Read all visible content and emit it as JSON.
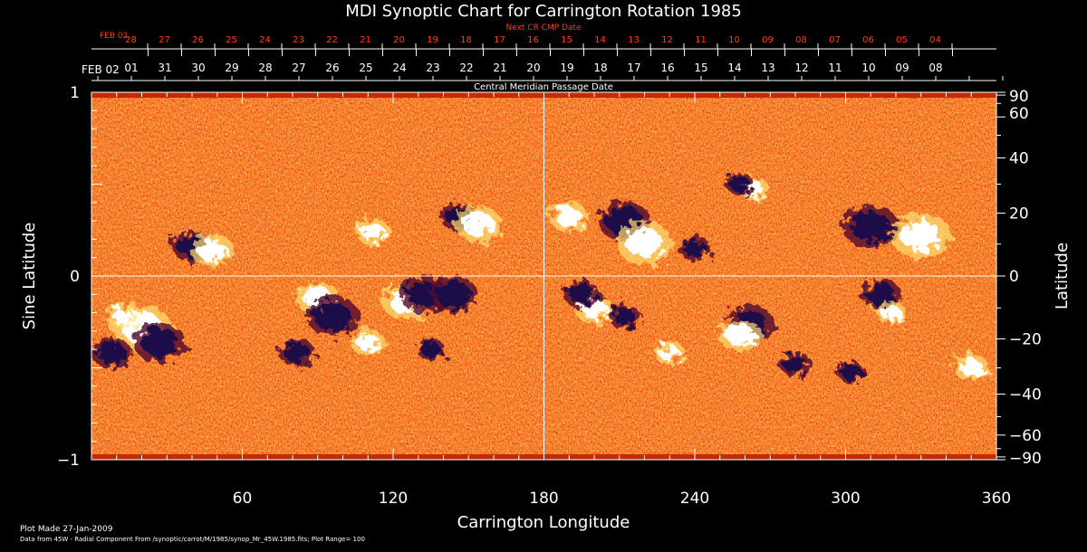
{
  "chart_data": {
    "type": "heatmap",
    "title": "MDI Synoptic Chart for Carrington Rotation 1985",
    "xlabel": "Carrington Longitude",
    "ylabel_left": "Sine Latitude",
    "ylabel_right": "Latitude",
    "xlim": [
      0,
      360
    ],
    "ylim": [
      -1,
      1
    ],
    "x_ticks": [
      60,
      120,
      180,
      240,
      300,
      360
    ],
    "y_ticks_left": [
      "1",
      "0",
      "−1"
    ],
    "y_ticks_right": [
      90,
      60,
      40,
      20,
      0,
      -20,
      -40,
      -60,
      -90
    ],
    "y_ticks_right_labels": [
      "90",
      "60",
      "40",
      "20",
      "0",
      "−20",
      "−40",
      "−60",
      "−90"
    ],
    "center_crosshair": {
      "longitude": 180,
      "sine_latitude": 0
    },
    "plot_range": 100,
    "colormap_colors": [
      "#1a0a4a",
      "#5a1030",
      "#c02000",
      "#ff5a10",
      "#ff9a30",
      "#ffe070",
      "#ffffff"
    ],
    "magnetic_regions": [
      {
        "lon": 40,
        "sinlat": 0.16,
        "polarity": "negative",
        "size": 1.0
      },
      {
        "lon": 48,
        "sinlat": 0.14,
        "polarity": "positive",
        "size": 1.0
      },
      {
        "lon": 20,
        "sinlat": -0.28,
        "polarity": "positive",
        "size": 1.4
      },
      {
        "lon": 27,
        "sinlat": -0.36,
        "polarity": "negative",
        "size": 1.3
      },
      {
        "lon": 12,
        "sinlat": -0.22,
        "polarity": "positive",
        "size": 0.7
      },
      {
        "lon": 8,
        "sinlat": -0.42,
        "polarity": "negative",
        "size": 1.0
      },
      {
        "lon": 90,
        "sinlat": -0.12,
        "polarity": "positive",
        "size": 1.0
      },
      {
        "lon": 96,
        "sinlat": -0.22,
        "polarity": "negative",
        "size": 1.3
      },
      {
        "lon": 82,
        "sinlat": -0.42,
        "polarity": "negative",
        "size": 0.9
      },
      {
        "lon": 112,
        "sinlat": 0.24,
        "polarity": "positive",
        "size": 0.8
      },
      {
        "lon": 125,
        "sinlat": -0.14,
        "polarity": "positive",
        "size": 1.1
      },
      {
        "lon": 132,
        "sinlat": -0.1,
        "polarity": "negative",
        "size": 1.2
      },
      {
        "lon": 144,
        "sinlat": -0.1,
        "polarity": "negative",
        "size": 1.2
      },
      {
        "lon": 146,
        "sinlat": 0.32,
        "polarity": "negative",
        "size": 0.9
      },
      {
        "lon": 154,
        "sinlat": 0.28,
        "polarity": "positive",
        "size": 1.1
      },
      {
        "lon": 110,
        "sinlat": -0.36,
        "polarity": "positive",
        "size": 0.8
      },
      {
        "lon": 135,
        "sinlat": -0.4,
        "polarity": "negative",
        "size": 0.7
      },
      {
        "lon": 190,
        "sinlat": 0.32,
        "polarity": "positive",
        "size": 0.9
      },
      {
        "lon": 212,
        "sinlat": 0.3,
        "polarity": "negative",
        "size": 1.3
      },
      {
        "lon": 220,
        "sinlat": 0.18,
        "polarity": "positive",
        "size": 1.3
      },
      {
        "lon": 240,
        "sinlat": 0.15,
        "polarity": "negative",
        "size": 0.8
      },
      {
        "lon": 200,
        "sinlat": -0.18,
        "polarity": "positive",
        "size": 0.9
      },
      {
        "lon": 195,
        "sinlat": -0.1,
        "polarity": "negative",
        "size": 0.9
      },
      {
        "lon": 212,
        "sinlat": -0.22,
        "polarity": "negative",
        "size": 0.8
      },
      {
        "lon": 263,
        "sinlat": 0.48,
        "polarity": "positive",
        "size": 0.7
      },
      {
        "lon": 258,
        "sinlat": 0.5,
        "polarity": "negative",
        "size": 0.7
      },
      {
        "lon": 262,
        "sinlat": -0.26,
        "polarity": "negative",
        "size": 1.2
      },
      {
        "lon": 258,
        "sinlat": -0.32,
        "polarity": "positive",
        "size": 1.0
      },
      {
        "lon": 230,
        "sinlat": -0.42,
        "polarity": "positive",
        "size": 0.7
      },
      {
        "lon": 280,
        "sinlat": -0.48,
        "polarity": "negative",
        "size": 0.8
      },
      {
        "lon": 310,
        "sinlat": 0.27,
        "polarity": "negative",
        "size": 1.4
      },
      {
        "lon": 330,
        "sinlat": 0.22,
        "polarity": "positive",
        "size": 1.4
      },
      {
        "lon": 314,
        "sinlat": -0.1,
        "polarity": "negative",
        "size": 1.0
      },
      {
        "lon": 318,
        "sinlat": -0.2,
        "polarity": "positive",
        "size": 0.7
      },
      {
        "lon": 302,
        "sinlat": -0.52,
        "polarity": "negative",
        "size": 0.7
      },
      {
        "lon": 350,
        "sinlat": -0.5,
        "polarity": "positive",
        "size": 0.8
      }
    ],
    "next_cr_cmp_date": {
      "label": "Next CR CMP Date",
      "start_label": "FEB 02",
      "days": [
        "28",
        "27",
        "26",
        "25",
        "24",
        "23",
        "22",
        "21",
        "20",
        "19",
        "18",
        "17",
        "16",
        "15",
        "14",
        "13",
        "12",
        "11",
        "10",
        "09",
        "08",
        "07",
        "06",
        "05",
        "04"
      ]
    },
    "cmp_date": {
      "label": "Central Meridian Passage Date",
      "start_label": "FEB 02",
      "days": [
        "01",
        "31",
        "30",
        "29",
        "28",
        "27",
        "26",
        "25",
        "24",
        "23",
        "22",
        "21",
        "20",
        "19",
        "18",
        "17",
        "16",
        "15",
        "14",
        "13",
        "12",
        "11",
        "10",
        "09",
        "08"
      ]
    }
  },
  "footer": {
    "plot_made": "Plot Made 27-Jan-2009",
    "data_source": "Data from 45W - Radial Component From /synoptic/carrot/M/1985/synop_Mr_45W.1985.fits; Plot Range=  100"
  }
}
